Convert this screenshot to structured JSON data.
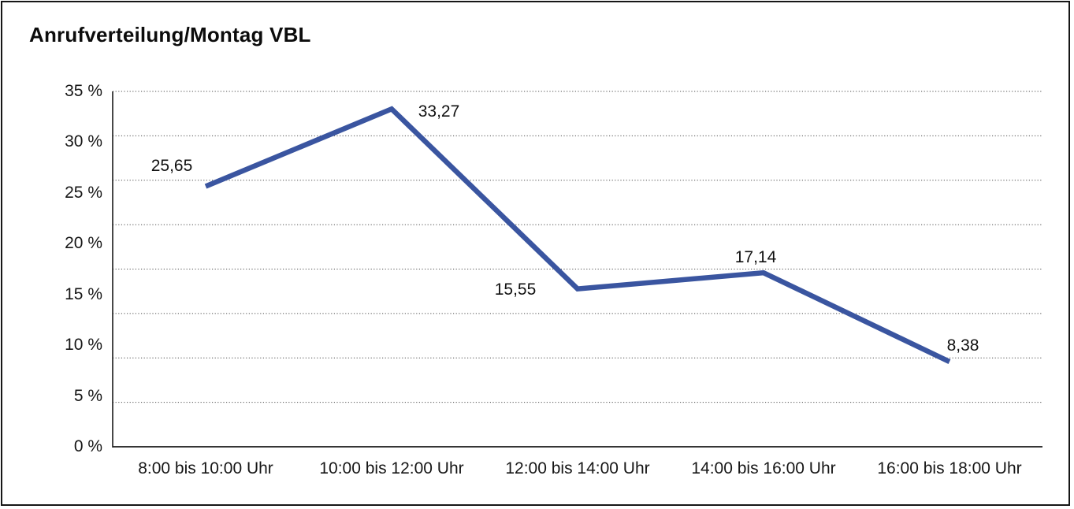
{
  "title": "Anrufverteilung/Montag VBL",
  "accent_color": "#3A55A0",
  "chart_data": {
    "type": "line",
    "title": "Anrufverteilung/Montag VBL",
    "categories": [
      "8:00 bis 10:00 Uhr",
      "10:00 bis 12:00 Uhr",
      "12:00 bis 14:00 Uhr",
      "14:00 bis 16:00 Uhr",
      "16:00 bis 18:00 Uhr"
    ],
    "values": [
      25.65,
      33.27,
      15.55,
      17.14,
      8.38
    ],
    "value_labels": [
      "25,65",
      "33,27",
      "15,55",
      "17,14",
      "8,38"
    ],
    "series_name": "Anrufverteilung Montag VBL",
    "xlabel": "",
    "ylabel": "",
    "ylim": [
      0,
      35
    ],
    "ytick_step": 5,
    "ytick_labels": [
      "0 %",
      "5 %",
      "10 %",
      "15 %",
      "20 %",
      "25 %",
      "30 %",
      "35 %"
    ],
    "grid": "horizontal-dotted",
    "gridline_divisions": 8,
    "legend": "none",
    "line_color": "#3A55A0",
    "axis_color": "#1a1a1a",
    "grid_color": "#4d4d4d"
  }
}
